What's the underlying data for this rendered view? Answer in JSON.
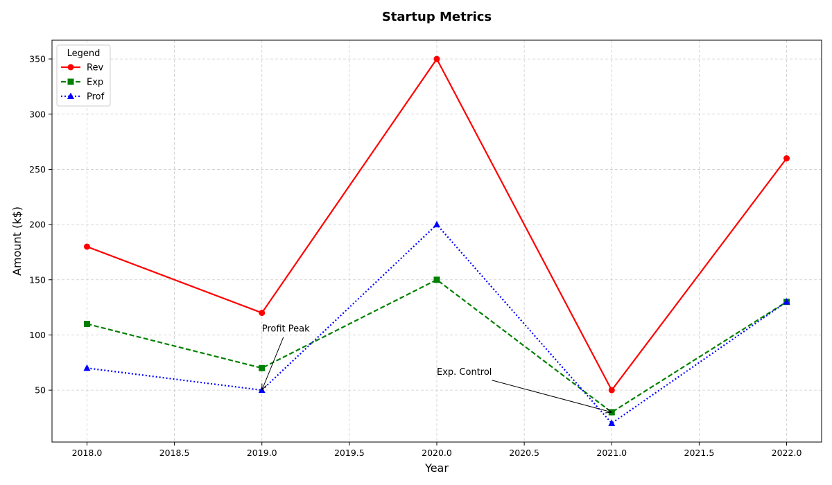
{
  "chart_data": {
    "type": "line",
    "title": "Startup Metrics",
    "xlabel": "Year",
    "ylabel": "Amount (k$)",
    "x": [
      2018,
      2019,
      2020,
      2021,
      2022
    ],
    "xlim": [
      2017.8,
      2022.2
    ],
    "ylim": [
      3,
      367
    ],
    "xticks": [
      "2018.0",
      "2018.5",
      "2019.0",
      "2019.5",
      "2020.0",
      "2020.5",
      "2021.0",
      "2021.5",
      "2022.0"
    ],
    "yticks": [
      "50",
      "100",
      "150",
      "200",
      "250",
      "300",
      "350"
    ],
    "grid": true,
    "legend": {
      "title": "Legend",
      "placement": "upper-left"
    },
    "series": [
      {
        "name": "Rev",
        "values": [
          180,
          120,
          350,
          50,
          260
        ],
        "color": "#ff0000",
        "dash": "solid",
        "marker": "circle"
      },
      {
        "name": "Exp",
        "values": [
          110,
          70,
          150,
          30,
          130
        ],
        "color": "#008000",
        "dash": "dashed",
        "marker": "square"
      },
      {
        "name": "Prof",
        "values": [
          70,
          50,
          200,
          20,
          130
        ],
        "color": "#0000ff",
        "dash": "dotted",
        "marker": "triangle"
      }
    ],
    "annotations": [
      {
        "text": "Profit Peak",
        "text_x": 2019.0,
        "text_y": 98,
        "arrow_x": 2019.0,
        "arrow_y": 50
      },
      {
        "text": "Exp. Control",
        "text_x": 2020.0,
        "text_y": 59,
        "arrow_x": 2021.0,
        "arrow_y": 30
      }
    ]
  }
}
